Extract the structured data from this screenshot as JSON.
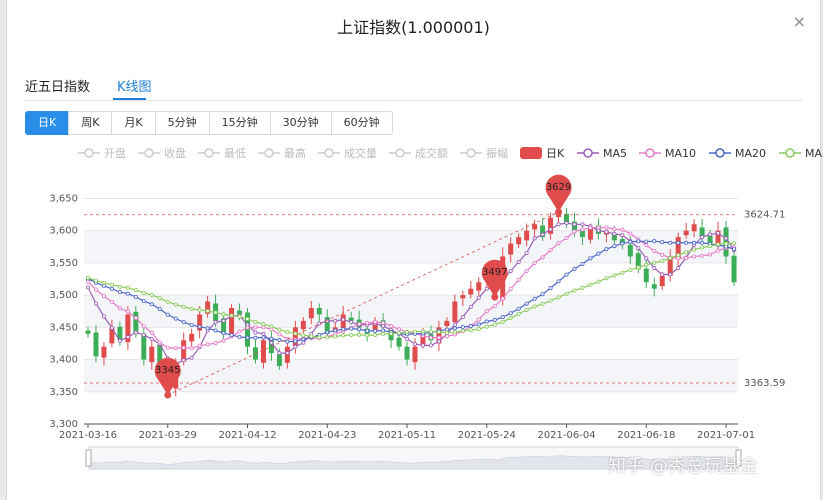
{
  "dialog": {
    "title": "上证指数(1.000001)",
    "close_label": "×",
    "tabs": [
      {
        "label": "近五日指数"
      },
      {
        "label": "K线图"
      }
    ],
    "active_tab": 1,
    "periods": [
      {
        "label": "日K"
      },
      {
        "label": "周K"
      },
      {
        "label": "月K"
      },
      {
        "label": "5分钟"
      },
      {
        "label": "15分钟"
      },
      {
        "label": "30分钟"
      },
      {
        "label": "60分钟"
      }
    ],
    "active_period": 0
  },
  "legend": [
    {
      "label": "开盘",
      "color": "#cccccc",
      "style": "circle-line"
    },
    {
      "label": "收盘",
      "color": "#cccccc",
      "style": "circle-line"
    },
    {
      "label": "最低",
      "color": "#cccccc",
      "style": "circle-line"
    },
    {
      "label": "最高",
      "color": "#cccccc",
      "style": "circle-line"
    },
    {
      "label": "成交量",
      "color": "#cccccc",
      "style": "circle-line"
    },
    {
      "label": "成交额",
      "color": "#cccccc",
      "style": "circle-line"
    },
    {
      "label": "振幅",
      "color": "#cccccc",
      "style": "circle-line"
    },
    {
      "label": "日K",
      "color": "#e04b4b",
      "style": "rect"
    },
    {
      "label": "MA5",
      "color": "#9b5fb7",
      "style": "circle-line"
    },
    {
      "label": "MA10",
      "color": "#e779c8",
      "style": "circle-line"
    },
    {
      "label": "MA20",
      "color": "#4b66c8",
      "style": "circle-line"
    },
    {
      "label": "MA30",
      "color": "#8acb5a",
      "style": "circle-line"
    }
  ],
  "watermark": "知乎 @秀总玩基金",
  "chart_data": {
    "type": "candlestick",
    "y_ticks": [
      3300,
      3350,
      3400,
      3450,
      3500,
      3550,
      3600,
      3650
    ],
    "ylim": [
      3300,
      3660
    ],
    "x_tick_labels": [
      "2021-03-16",
      "2021-03-29",
      "2021-04-12",
      "2021-04-23",
      "2021-05-11",
      "2021-05-24",
      "2021-06-04",
      "2021-06-18",
      "2021-07-01"
    ],
    "x_tick_index": [
      0,
      10,
      20,
      30,
      40,
      50,
      60,
      70,
      80
    ],
    "n_days": 82,
    "colors": {
      "up": "#e04b4b",
      "down": "#3cae57",
      "ma5": "#9b5fb7",
      "ma10": "#e779c8",
      "ma20": "#4b66c8",
      "ma30": "#8acb5a"
    },
    "markers": {
      "max": {
        "index": 59,
        "value": 3629,
        "label": "3629"
      },
      "min": {
        "index": 10,
        "value": 3345,
        "label": "3345"
      },
      "mid": {
        "index": 51,
        "value": 3497,
        "label": "3497"
      }
    },
    "reference_lines": [
      {
        "value": 3624.71,
        "label": "3624.71"
      },
      {
        "value": 3363.59,
        "label": "3363.59"
      }
    ],
    "close": [
      3440,
      3405,
      3420,
      3450,
      3430,
      3470,
      3440,
      3400,
      3420,
      3390,
      3360,
      3395,
      3430,
      3440,
      3470,
      3490,
      3460,
      3440,
      3480,
      3470,
      3420,
      3400,
      3430,
      3410,
      3390,
      3420,
      3450,
      3460,
      3480,
      3470,
      3440,
      3450,
      3470,
      3460,
      3450,
      3440,
      3460,
      3450,
      3430,
      3420,
      3400,
      3420,
      3440,
      3430,
      3450,
      3460,
      3490,
      3500,
      3510,
      3520,
      3530,
      3497,
      3560,
      3580,
      3590,
      3600,
      3610,
      3590,
      3620,
      3629,
      3610,
      3600,
      3590,
      3605,
      3595,
      3600,
      3585,
      3580,
      3560,
      3540,
      3520,
      3510,
      3530,
      3560,
      3590,
      3600,
      3610,
      3590,
      3580,
      3600,
      3560,
      3520
    ]
  }
}
